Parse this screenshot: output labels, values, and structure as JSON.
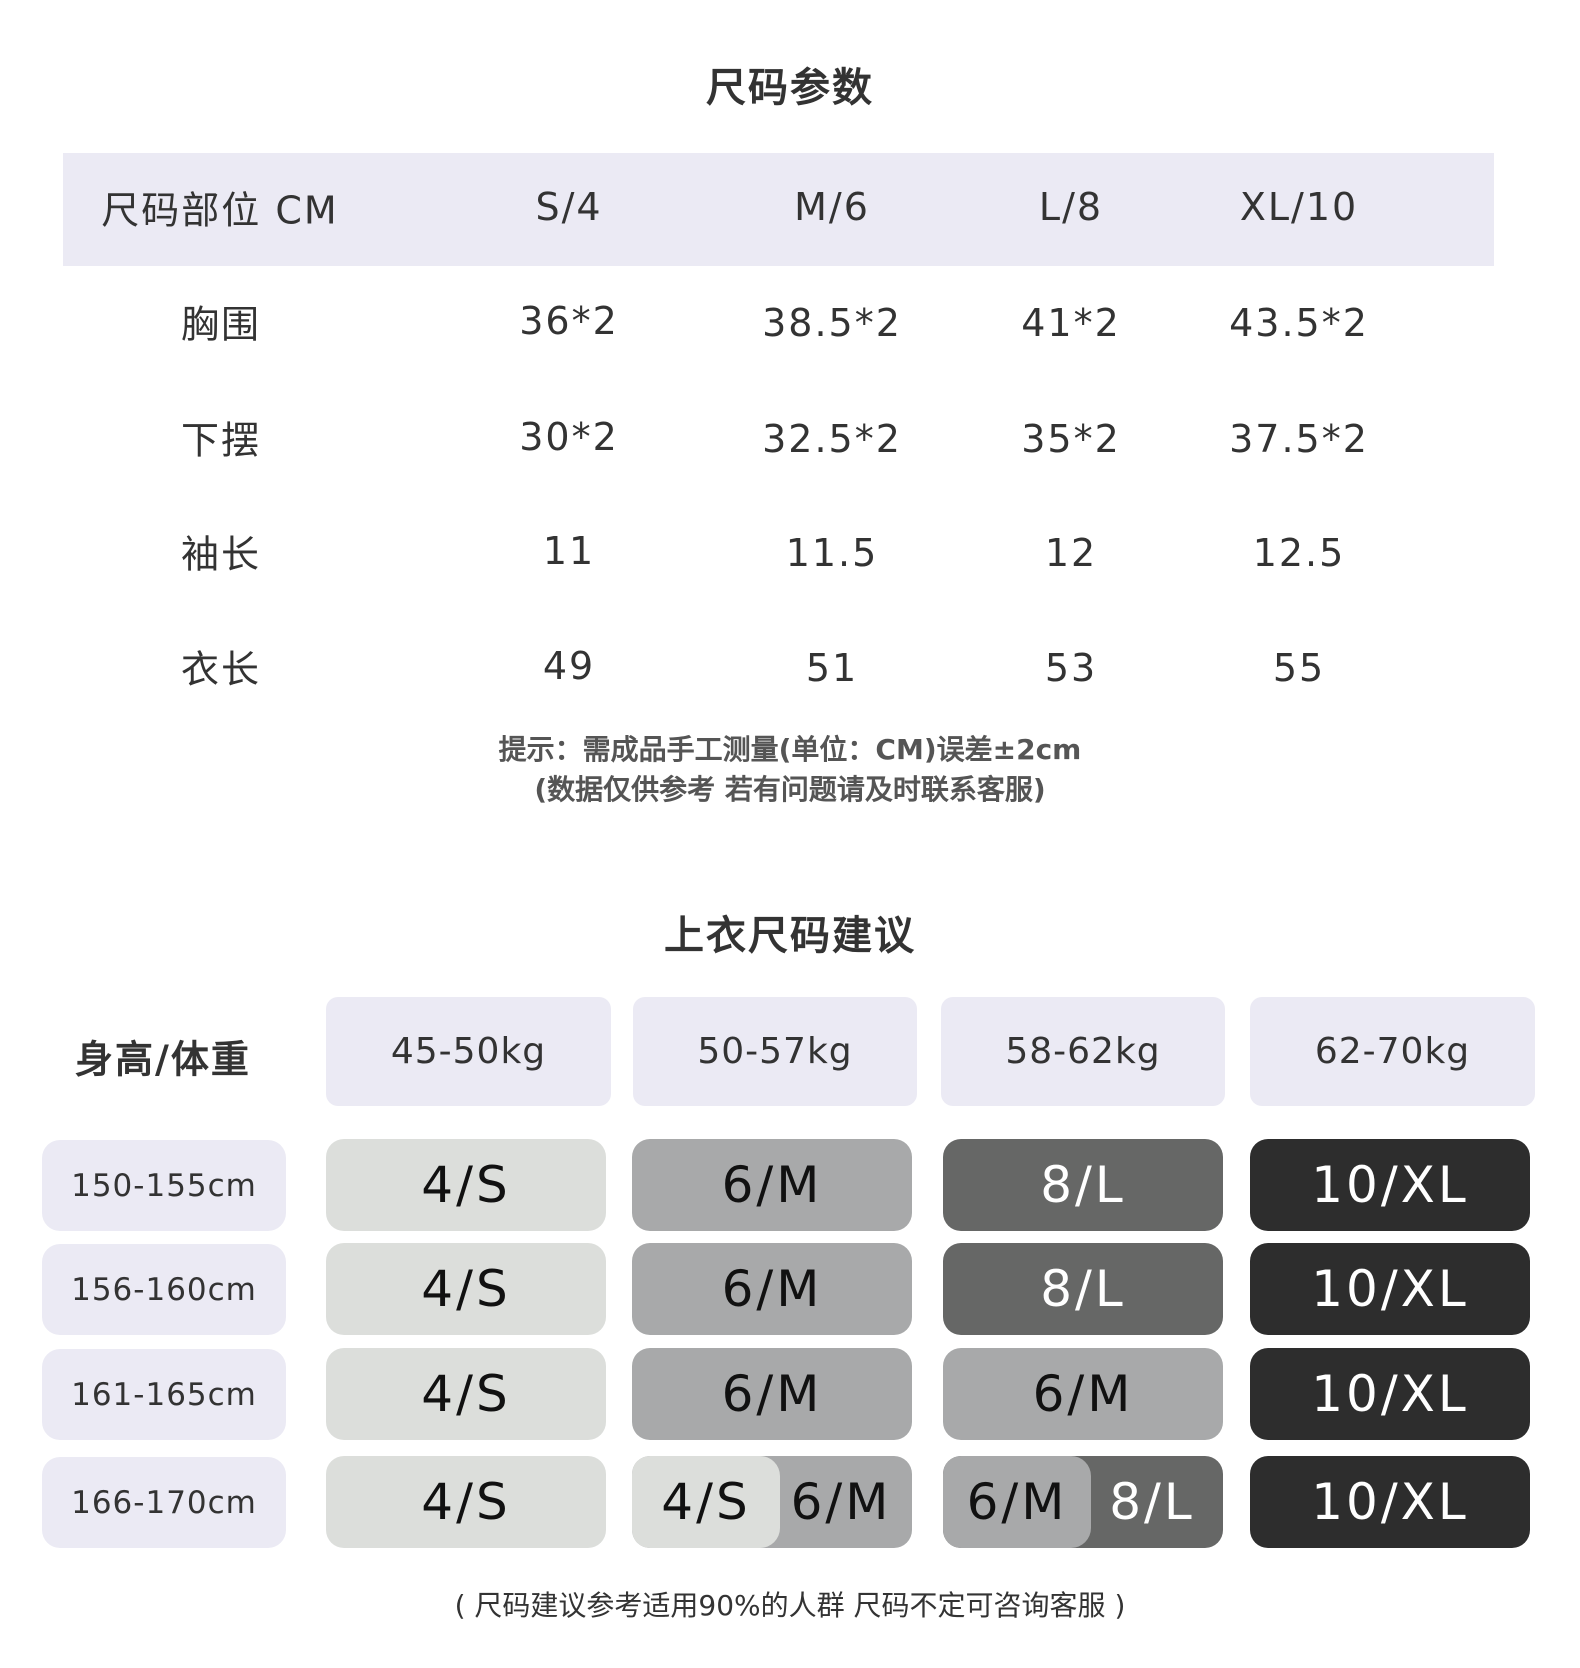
{
  "size_params": {
    "title": "尺码参数",
    "header": [
      "尺码部位 CM",
      "S/4",
      "M/6",
      "L/8",
      "XL/10"
    ],
    "rows": [
      {
        "label": "胸围",
        "values": [
          "36*2",
          "38.5*2",
          "41*2",
          "43.5*2"
        ]
      },
      {
        "label": "下摆",
        "values": [
          "30*2",
          "32.5*2",
          "35*2",
          "37.5*2"
        ]
      },
      {
        "label": "袖长",
        "values": [
          "11",
          "11.5",
          "12",
          "12.5"
        ]
      },
      {
        "label": "衣长",
        "values": [
          "49",
          "51",
          "53",
          "55"
        ]
      }
    ],
    "note_line1": "提示：需成品手工测量(单位：CM)误差±2cm",
    "note_line2": "(数据仅供参考  若有问题请及时联系客服)"
  },
  "recommend": {
    "title": "上衣尺码建议",
    "corner_label": "身高/体重",
    "weights": [
      "45-50kg",
      "50-57kg",
      "58-62kg",
      "62-70kg"
    ],
    "heights": [
      "150-155cm",
      "156-160cm",
      "161-165cm",
      "166-170cm"
    ],
    "grid": [
      [
        [
          "4/S"
        ],
        [
          "6/M"
        ],
        [
          "8/L"
        ],
        [
          "10/XL"
        ]
      ],
      [
        [
          "4/S"
        ],
        [
          "6/M"
        ],
        [
          "8/L"
        ],
        [
          "10/XL"
        ]
      ],
      [
        [
          "4/S"
        ],
        [
          "6/M"
        ],
        [
          "6/M"
        ],
        [
          "10/XL"
        ]
      ],
      [
        [
          "4/S"
        ],
        [
          "4/S",
          "6/M"
        ],
        [
          "6/M",
          "8/L"
        ],
        [
          "10/XL"
        ]
      ]
    ],
    "footnote": "( 尺码建议参考适用90%的人群  尺码不定可咨询客服 )"
  },
  "colors": {
    "header_bg": "#ebeaf4",
    "4/S": "#dcdedb",
    "6/M": "#a8a9aa",
    "8/L": "#666766",
    "10/XL": "#2d2d2d"
  }
}
